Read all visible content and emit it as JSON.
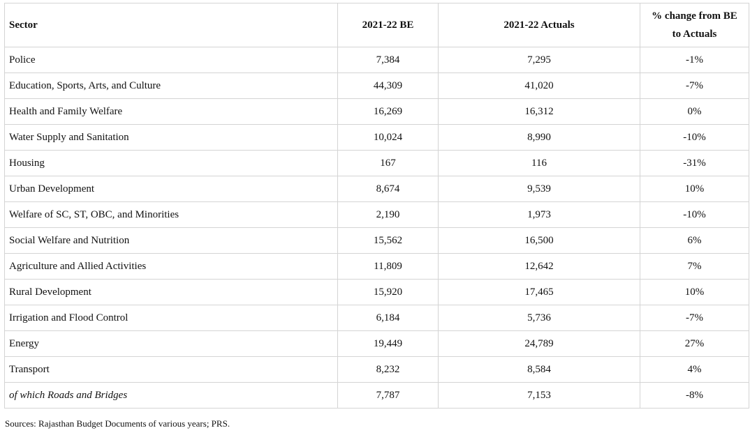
{
  "table": {
    "headers": {
      "sector": "Sector",
      "be": "2021-22 BE",
      "actuals": "2021-22 Actuals",
      "pct_line1": "% change from BE",
      "pct_line2": "to Actuals"
    },
    "rows": [
      {
        "sector": "Police",
        "be": "7,384",
        "actuals": "7,295",
        "pct": "-1%"
      },
      {
        "sector": "Education, Sports, Arts, and Culture",
        "be": "44,309",
        "actuals": "41,020",
        "pct": "-7%"
      },
      {
        "sector": "Health and Family Welfare",
        "be": "16,269",
        "actuals": "16,312",
        "pct": "0%"
      },
      {
        "sector": "Water Supply and Sanitation",
        "be": "10,024",
        "actuals": "8,990",
        "pct": "-10%"
      },
      {
        "sector": "Housing",
        "be": "167",
        "actuals": "116",
        "pct": "-31%"
      },
      {
        "sector": "Urban Development",
        "be": "8,674",
        "actuals": "9,539",
        "pct": "10%"
      },
      {
        "sector": "Welfare of SC, ST, OBC, and Minorities",
        "be": "2,190",
        "actuals": "1,973",
        "pct": "-10%"
      },
      {
        "sector": "Social Welfare and Nutrition",
        "be": "15,562",
        "actuals": "16,500",
        "pct": "6%"
      },
      {
        "sector": "Agriculture and Allied Activities",
        "be": "11,809",
        "actuals": "12,642",
        "pct": "7%"
      },
      {
        "sector": "Rural Development",
        "be": "15,920",
        "actuals": "17,465",
        "pct": "10%"
      },
      {
        "sector": "Irrigation and Flood Control",
        "be": "6,184",
        "actuals": "5,736",
        "pct": "-7%"
      },
      {
        "sector": "Energy",
        "be": "19,449",
        "actuals": "24,789",
        "pct": "27%"
      },
      {
        "sector": "Transport",
        "be": "8,232",
        "actuals": "8,584",
        "pct": "4%"
      },
      {
        "sector": "of which Roads and Bridges",
        "be": "7,787",
        "actuals": "7,153",
        "pct": "-8%",
        "italic": true
      }
    ]
  },
  "source_note": "Sources: Rajasthan Budget Documents of various years; PRS."
}
